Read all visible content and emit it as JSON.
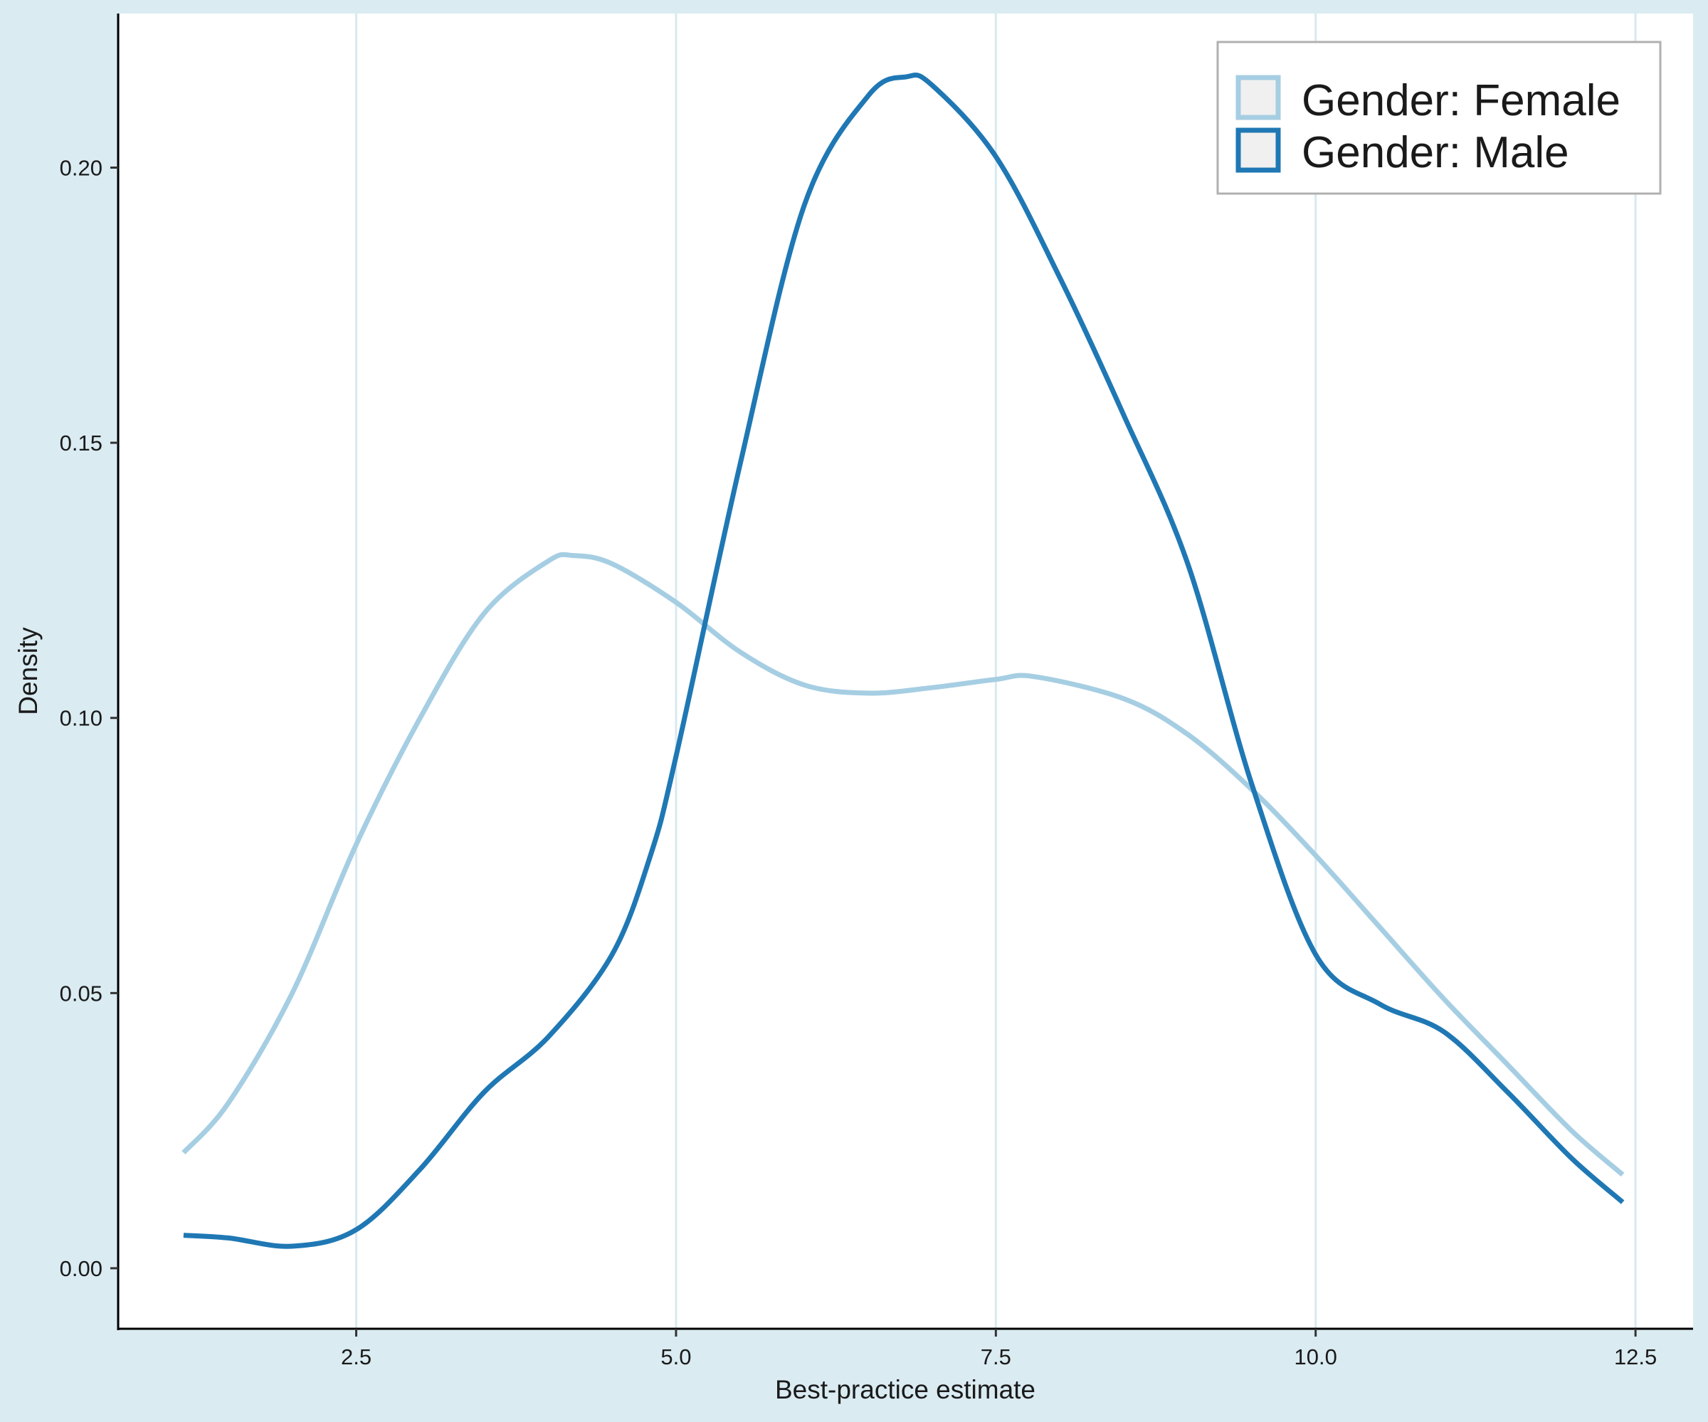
{
  "chart_data": {
    "type": "line",
    "title": "",
    "xlabel": "Best-practice estimate",
    "ylabel": "Density",
    "xlim": [
      0.65,
      12.95
    ],
    "ylim": [
      -0.011,
      0.228
    ],
    "x_ticks": [
      {
        "value": 2.5,
        "label": "2.5"
      },
      {
        "value": 5.0,
        "label": "5.0"
      },
      {
        "value": 7.5,
        "label": "7.5"
      },
      {
        "value": 10.0,
        "label": "10.0"
      },
      {
        "value": 12.5,
        "label": "12.5"
      }
    ],
    "y_ticks": [
      {
        "value": 0.0,
        "label": "0.00"
      },
      {
        "value": 0.05,
        "label": "0.05"
      },
      {
        "value": 0.1,
        "label": "0.10"
      },
      {
        "value": 0.15,
        "label": "0.15"
      },
      {
        "value": 0.2,
        "label": "0.20"
      }
    ],
    "grid": "vertical major lines only",
    "legend_position": "top-right",
    "series": [
      {
        "name": "Gender: Female",
        "color": "#a6cee3",
        "x": [
          1.15,
          1.5,
          2.0,
          2.5,
          3.0,
          3.5,
          4.0,
          4.2,
          4.5,
          5.0,
          5.5,
          6.0,
          6.5,
          7.0,
          7.5,
          7.8,
          8.5,
          9.0,
          9.5,
          10.0,
          10.5,
          11.0,
          11.5,
          12.0,
          12.4
        ],
        "y": [
          0.021,
          0.03,
          0.05,
          0.077,
          0.1,
          0.119,
          0.1285,
          0.1295,
          0.128,
          0.121,
          0.112,
          0.106,
          0.1045,
          0.1055,
          0.107,
          0.1075,
          0.1035,
          0.097,
          0.087,
          0.075,
          0.062,
          0.049,
          0.037,
          0.025,
          0.017
        ]
      },
      {
        "name": "Gender: Male",
        "color": "#1f78b4",
        "x": [
          1.15,
          1.5,
          2.0,
          2.5,
          3.0,
          3.5,
          4.0,
          4.5,
          4.8,
          5.0,
          5.5,
          6.0,
          6.5,
          6.8,
          7.0,
          7.5,
          8.0,
          8.5,
          9.0,
          9.5,
          10.0,
          10.5,
          11.0,
          11.5,
          12.0,
          12.4
        ],
        "y": [
          0.006,
          0.0055,
          0.004,
          0.007,
          0.018,
          0.032,
          0.042,
          0.057,
          0.075,
          0.093,
          0.146,
          0.193,
          0.213,
          0.2165,
          0.215,
          0.202,
          0.18,
          0.155,
          0.128,
          0.088,
          0.057,
          0.048,
          0.043,
          0.032,
          0.02,
          0.012
        ]
      }
    ]
  }
}
